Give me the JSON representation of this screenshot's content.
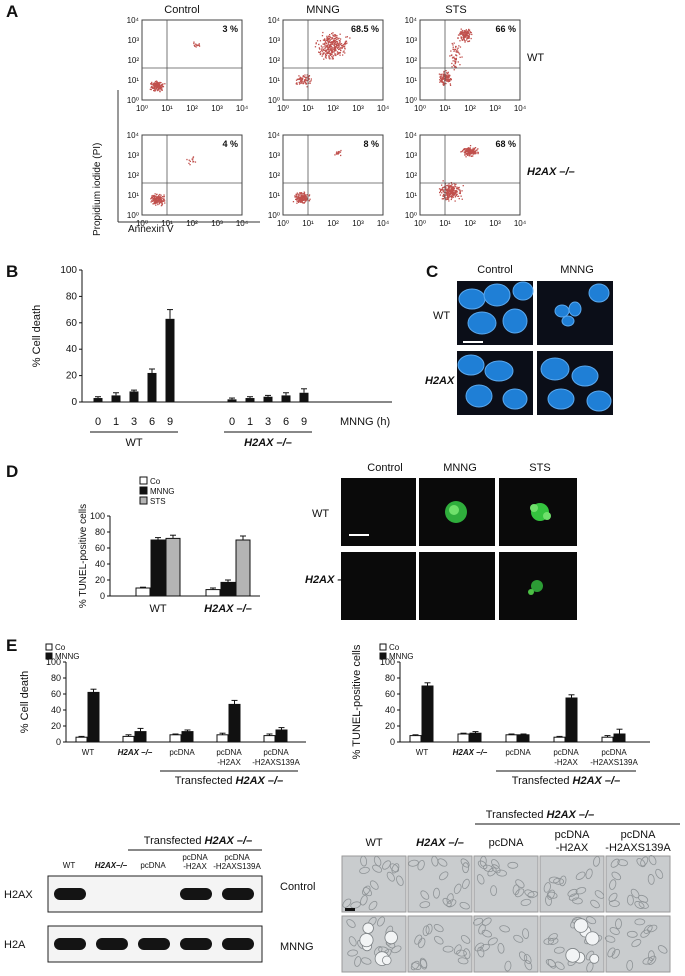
{
  "panels": {
    "A": "A",
    "B": "B",
    "C": "C",
    "D": "D",
    "E": "E"
  },
  "panel_a": {
    "column_titles": [
      "Control",
      "MNNG",
      "STS"
    ],
    "row_labels": [
      "WT",
      "H2AX –/–"
    ],
    "plots": [
      {
        "row": "WT",
        "col": "Control",
        "percent": "3 %"
      },
      {
        "row": "WT",
        "col": "MNNG",
        "percent": "68.5 %"
      },
      {
        "row": "WT",
        "col": "STS",
        "percent": "66 %"
      },
      {
        "row": "H2AX –/–",
        "col": "Control",
        "percent": "4 %"
      },
      {
        "row": "H2AX –/–",
        "col": "MNNG",
        "percent": "8 %"
      },
      {
        "row": "H2AX –/–",
        "col": "STS",
        "percent": "68 %"
      }
    ],
    "axis_ticks": [
      "10⁰",
      "10¹",
      "10²",
      "10³",
      "10⁴"
    ],
    "ylabel": "Propidium iodide (PI)",
    "xlabel": "Annexin V",
    "dot_color": "#c0504d"
  },
  "chart_data": [
    {
      "id": "B",
      "type": "bar",
      "ylabel": "% Cell death",
      "xlabel": "MNNG (h)",
      "ylim": [
        0,
        100
      ],
      "yticks": [
        "0",
        "20",
        "40",
        "60",
        "80",
        "100"
      ],
      "groups": [
        {
          "name": "WT",
          "categories": [
            "0",
            "1",
            "3",
            "6",
            "9"
          ],
          "values": [
            3,
            5,
            8,
            22,
            63
          ],
          "errors": [
            1,
            2,
            1,
            3,
            7
          ]
        },
        {
          "name": "H2AX –/–",
          "categories": [
            "0",
            "1",
            "3",
            "6",
            "9"
          ],
          "values": [
            2,
            3,
            4,
            5,
            7
          ],
          "errors": [
            1,
            1,
            1,
            2,
            3
          ]
        }
      ]
    },
    {
      "id": "D",
      "type": "bar",
      "ylabel": "% TUNEL-positive cells",
      "ylim": [
        0,
        100
      ],
      "yticks": [
        "0",
        "20",
        "40",
        "60",
        "80",
        "100"
      ],
      "categories": [
        "WT",
        "H2AX –/–"
      ],
      "series": [
        {
          "name": "Co",
          "values": [
            10,
            8
          ],
          "errors": [
            1,
            2
          ]
        },
        {
          "name": "MNNG",
          "values": [
            70,
            17
          ],
          "errors": [
            3,
            3
          ]
        },
        {
          "name": "STS",
          "values": [
            72,
            70
          ],
          "errors": [
            4,
            5
          ]
        }
      ],
      "colors": [
        "#ffffff",
        "#111111",
        "#b4b4b4"
      ]
    },
    {
      "id": "E-left",
      "type": "bar",
      "ylabel": "% Cell death",
      "ylim": [
        0,
        100
      ],
      "yticks": [
        "0",
        "20",
        "40",
        "60",
        "80",
        "100"
      ],
      "categories": [
        "WT",
        "H2AX –/–",
        "pcDNA",
        "pcDNA -H2AX",
        "pcDNA -H2AXS139A"
      ],
      "series": [
        {
          "name": "Co",
          "values": [
            6,
            7,
            9,
            9,
            8
          ],
          "errors": [
            1,
            2,
            1,
            2,
            2
          ]
        },
        {
          "name": "MNNG",
          "values": [
            62,
            13,
            13,
            47,
            15
          ],
          "errors": [
            4,
            4,
            2,
            5,
            3
          ]
        }
      ],
      "colors": [
        "#ffffff",
        "#111111"
      ]
    },
    {
      "id": "E-right",
      "type": "bar",
      "ylabel": "% TUNEL-positive cells",
      "ylim": [
        0,
        100
      ],
      "yticks": [
        "0",
        "20",
        "40",
        "60",
        "80",
        "100"
      ],
      "categories": [
        "WT",
        "H2AX –/–",
        "pcDNA",
        "pcDNA -H2AX",
        "pcDNA -H2AXS139A"
      ],
      "series": [
        {
          "name": "Co",
          "values": [
            8,
            10,
            9,
            6,
            6
          ],
          "errors": [
            1,
            1,
            1,
            1,
            2
          ]
        },
        {
          "name": "MNNG",
          "values": [
            70,
            11,
            9,
            55,
            10
          ],
          "errors": [
            4,
            2,
            1,
            4,
            6
          ]
        }
      ],
      "colors": [
        "#ffffff",
        "#111111"
      ]
    }
  ],
  "panel_c": {
    "col_titles": [
      "Control",
      "MNNG"
    ],
    "row_labels": [
      "WT",
      "H2AX –/–"
    ]
  },
  "panel_d_images": {
    "col_titles": [
      "Control",
      "MNNG",
      "STS"
    ],
    "row_labels": [
      "WT",
      "H2AX –/–"
    ]
  },
  "transfected_label": "Transfected H2AX –/–",
  "blot": {
    "lanes": [
      "WT",
      "H2AX–/–",
      "pcDNA",
      "pcDNA -H2AX",
      "pcDNA -H2AXS139A"
    ],
    "rows": [
      "H2AX",
      "H2A"
    ],
    "h2ax_bands": [
      1,
      0,
      0,
      1,
      1
    ],
    "transfected_label": "Transfected H2AX –/–"
  },
  "phase": {
    "cols": [
      "WT",
      "H2AX –/–",
      "pcDNA",
      "pcDNA -H2AX",
      "pcDNA -H2AXS139A"
    ],
    "rows": [
      "Control",
      "MNNG"
    ],
    "transfected_label": "Transfected H2AX –/–"
  }
}
